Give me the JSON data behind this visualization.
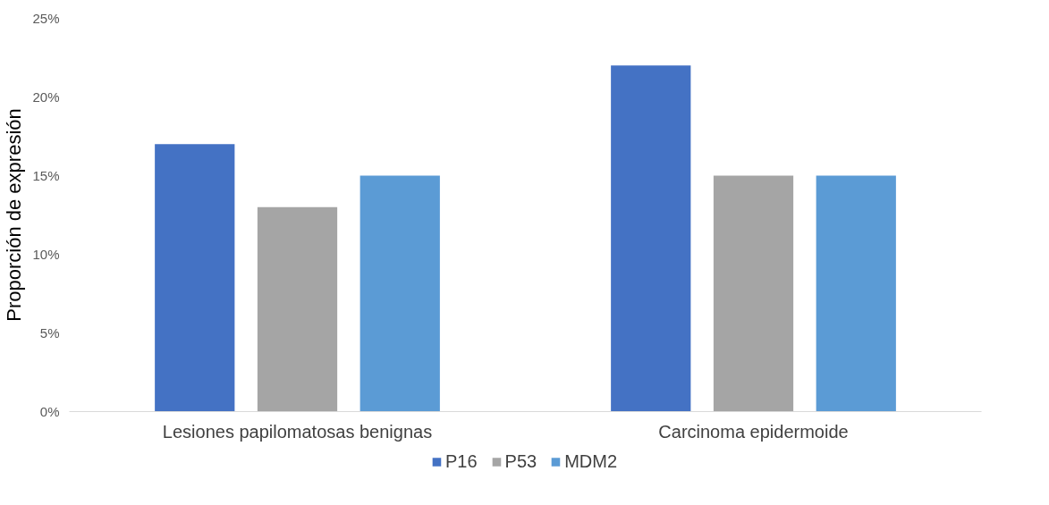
{
  "chart_data": {
    "type": "bar",
    "ylabel": "Proporción de expresión",
    "categories": [
      "Lesiones papilomatosas benignas",
      "Carcinoma epidermoide"
    ],
    "series": [
      {
        "name": "P16",
        "color": "#4472c4",
        "values": [
          17,
          22
        ]
      },
      {
        "name": "P53",
        "color": "#a5a5a5",
        "values": [
          13,
          15
        ]
      },
      {
        "name": "MDM2",
        "color": "#5b9bd5",
        "values": [
          15,
          15
        ]
      }
    ],
    "ylim": [
      0,
      25
    ],
    "yticks": [
      {
        "value": 0,
        "label": "0%"
      },
      {
        "value": 5,
        "label": "5%"
      },
      {
        "value": 10,
        "label": "10%"
      },
      {
        "value": 15,
        "label": "15%"
      },
      {
        "value": 20,
        "label": "20%"
      },
      {
        "value": 25,
        "label": "25%"
      }
    ],
    "grid": false,
    "legend": "bottom"
  }
}
